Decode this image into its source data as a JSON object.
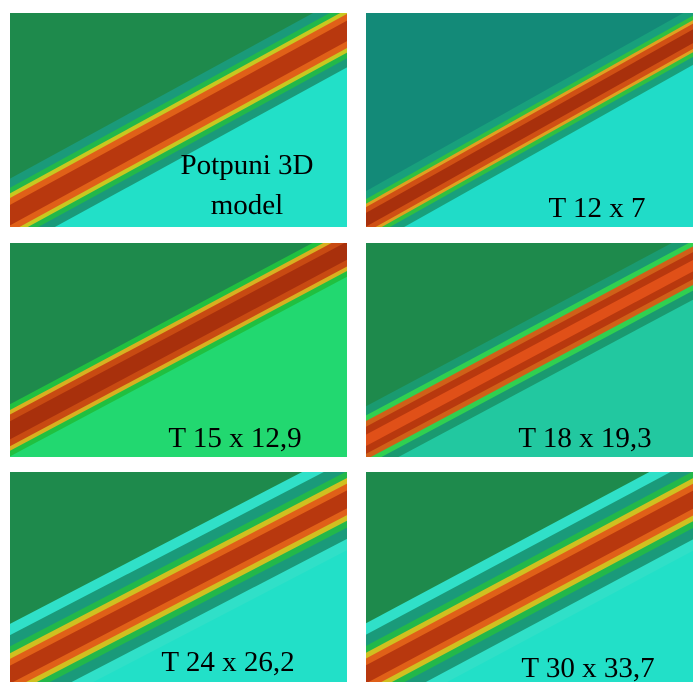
{
  "panels": [
    {
      "label": [
        "Potpuni 3D",
        "model"
      ]
    },
    {
      "label": [
        "T 12 x 7"
      ]
    },
    {
      "label": [
        "T 15 x 12,9"
      ]
    },
    {
      "label": [
        "T 18 x 19,3"
      ]
    },
    {
      "label": [
        "T 24 x 26,2"
      ]
    },
    {
      "label": [
        "T 30 x 33,7"
      ]
    }
  ]
}
